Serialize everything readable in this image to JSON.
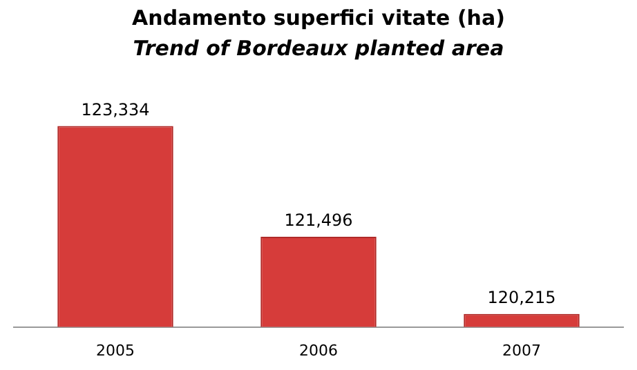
{
  "chart_data": {
    "type": "bar",
    "title": "Andamento superfici vitate (ha)",
    "subtitle": "Trend of Bordeaux planted area",
    "categories": [
      "2005",
      "2006",
      "2007"
    ],
    "values": [
      123334,
      121496,
      120215
    ],
    "value_labels": [
      "123,334",
      "121,496",
      "120,215"
    ],
    "color": "#d63c3a",
    "grid": false,
    "legend": false
  }
}
